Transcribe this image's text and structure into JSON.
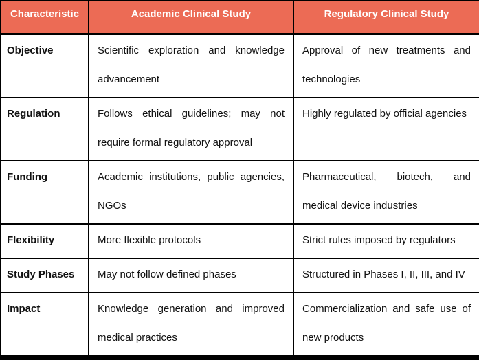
{
  "colors": {
    "header_bg": "#EC6B55",
    "header_text": "#FFFFFF",
    "border": "#000000",
    "body_text": "#111111",
    "page_bg": "#FFFFFF"
  },
  "table": {
    "header": [
      "Characteristic",
      "Academic Clinical Study",
      "Regulatory Clinical Study"
    ],
    "rows": [
      {
        "label": "Objective",
        "academic_lines": [
          "Scientific exploration and knowledge",
          "advancement"
        ],
        "regulatory_lines": [
          "Approval of new treatments and",
          "technologies"
        ]
      },
      {
        "label": "Regulation",
        "academic_lines": [
          "Follows ethical guidelines; may not",
          "require formal regulatory approval"
        ],
        "regulatory_lines": [
          "Highly regulated by official agencies"
        ]
      },
      {
        "label": "Funding",
        "academic_lines": [
          "Academic institutions, public agencies,",
          "NGOs"
        ],
        "regulatory_lines": [
          "Pharmaceutical, biotech, and",
          "medical device industries"
        ]
      },
      {
        "label": "Flexibility",
        "academic_lines": [
          "More flexible protocols"
        ],
        "regulatory_lines": [
          "Strict rules imposed by regulators"
        ]
      },
      {
        "label": "Study Phases",
        "academic_lines": [
          "May not follow defined phases"
        ],
        "regulatory_lines": [
          "Structured in Phases I, II, III, and IV"
        ]
      },
      {
        "label": "Impact",
        "academic_lines": [
          "Knowledge generation and improved",
          "medical practices"
        ],
        "regulatory_lines": [
          "Commercialization and safe use of",
          "new products"
        ]
      }
    ]
  }
}
